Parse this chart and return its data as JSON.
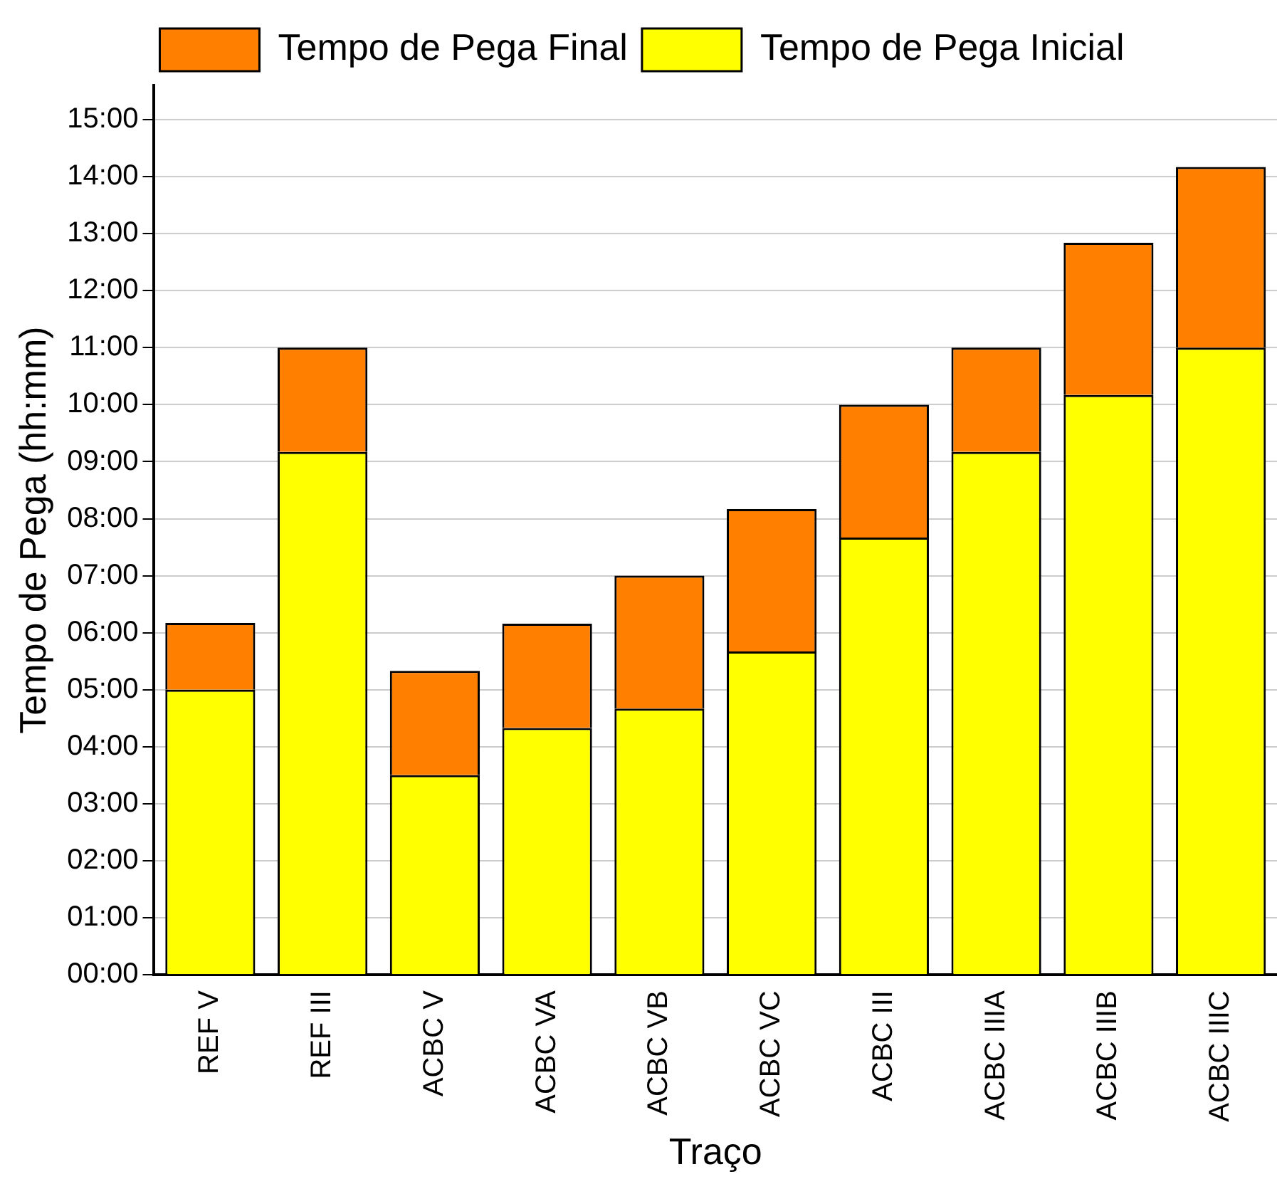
{
  "chart_data": {
    "type": "bar",
    "stacked": true,
    "xlabel": "Traço",
    "ylabel": "Tempo de Pega (hh:mm)",
    "categories": [
      "REF V",
      "REF III",
      "ACBC V",
      "ACBC VA",
      "ACBC VB",
      "ACBC VC",
      "ACBC III",
      "ACBC IIIA",
      "ACBC IIIB",
      "ACBC IIIC"
    ],
    "series": [
      {
        "name": "Tempo de Pega Inicial",
        "color": "#ffff00",
        "values": [
          5,
          9.17,
          3.5,
          4.33,
          4.67,
          5.67,
          7.67,
          9.17,
          10.17,
          11
        ]
      },
      {
        "name": "Tempo de Pega Final",
        "color": "#ff7f00",
        "values": [
          1.17,
          1.83,
          1.83,
          1.83,
          2.33,
          2.5,
          2.33,
          1.83,
          2.67,
          3.17
        ]
      }
    ],
    "ylim": [
      0,
      15.6
    ],
    "yticks": [
      {
        "value": 0,
        "label": "00:00"
      },
      {
        "value": 1,
        "label": "01:00"
      },
      {
        "value": 2,
        "label": "02:00"
      },
      {
        "value": 3,
        "label": "03:00"
      },
      {
        "value": 4,
        "label": "04:00"
      },
      {
        "value": 5,
        "label": "05:00"
      },
      {
        "value": 6,
        "label": "06:00"
      },
      {
        "value": 7,
        "label": "07:00"
      },
      {
        "value": 8,
        "label": "08:00"
      },
      {
        "value": 9,
        "label": "09:00"
      },
      {
        "value": 10,
        "label": "10:00"
      },
      {
        "value": 11,
        "label": "11:00"
      },
      {
        "value": 12,
        "label": "12:00"
      },
      {
        "value": 13,
        "label": "13:00"
      },
      {
        "value": 14,
        "label": "14:00"
      },
      {
        "value": 15,
        "label": "15:00"
      }
    ],
    "grid": "y",
    "legend": "top"
  }
}
